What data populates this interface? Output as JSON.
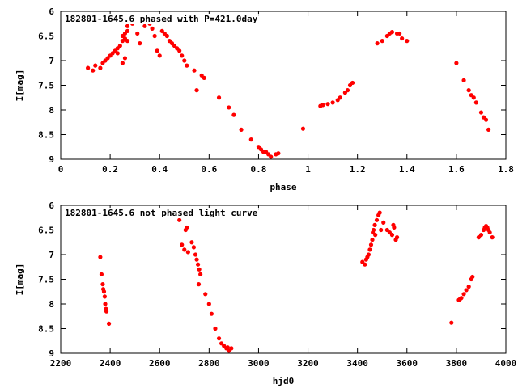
{
  "chart_data": [
    {
      "type": "scatter",
      "title": "182801-1645.6 phased with P=421.0day",
      "xlabel": "phase",
      "ylabel": "I[mag]",
      "xlim": [
        0,
        1.8
      ],
      "ylim": [
        9,
        6
      ],
      "y_inverted": true,
      "xticks": [
        "0",
        "0.2",
        "0.4",
        "0.6",
        "0.8",
        "1",
        "1.2",
        "1.4",
        "1.6",
        "1.8"
      ],
      "yticks": [
        "6",
        "6.5",
        "7",
        "7.5",
        "8",
        "8.5",
        "9"
      ],
      "grid": false,
      "marker_color": "#ff0000",
      "series": [
        {
          "points": [
            [
              0.11,
              7.15
            ],
            [
              0.13,
              7.2
            ],
            [
              0.14,
              7.1
            ],
            [
              0.16,
              7.15
            ],
            [
              0.17,
              7.05
            ],
            [
              0.18,
              7.0
            ],
            [
              0.19,
              6.95
            ],
            [
              0.2,
              6.9
            ],
            [
              0.21,
              6.85
            ],
            [
              0.22,
              6.8
            ],
            [
              0.23,
              6.75
            ],
            [
              0.24,
              6.7
            ],
            [
              0.23,
              6.85
            ],
            [
              0.25,
              6.6
            ],
            [
              0.25,
              6.5
            ],
            [
              0.26,
              6.45
            ],
            [
              0.26,
              6.55
            ],
            [
              0.27,
              6.4
            ],
            [
              0.27,
              6.6
            ],
            [
              0.27,
              6.3
            ],
            [
              0.28,
              6.2
            ],
            [
              0.29,
              6.25
            ],
            [
              0.3,
              6.2
            ],
            [
              0.31,
              6.15
            ],
            [
              0.31,
              6.45
            ],
            [
              0.32,
              6.65
            ],
            [
              0.25,
              7.05
            ],
            [
              0.26,
              6.95
            ],
            [
              0.34,
              6.3
            ],
            [
              0.35,
              6.2
            ],
            [
              0.36,
              6.25
            ],
            [
              0.37,
              6.35
            ],
            [
              0.38,
              6.5
            ],
            [
              0.39,
              6.8
            ],
            [
              0.4,
              6.9
            ],
            [
              0.41,
              6.4
            ],
            [
              0.42,
              6.45
            ],
            [
              0.43,
              6.5
            ],
            [
              0.44,
              6.6
            ],
            [
              0.45,
              6.65
            ],
            [
              0.46,
              6.7
            ],
            [
              0.47,
              6.75
            ],
            [
              0.48,
              6.8
            ],
            [
              0.49,
              6.9
            ],
            [
              0.5,
              7.0
            ],
            [
              0.51,
              7.1
            ],
            [
              0.54,
              7.2
            ],
            [
              0.55,
              7.6
            ],
            [
              0.57,
              7.3
            ],
            [
              0.58,
              7.35
            ],
            [
              0.64,
              7.75
            ],
            [
              0.68,
              7.95
            ],
            [
              0.7,
              8.1
            ],
            [
              0.73,
              8.4
            ],
            [
              0.77,
              8.6
            ],
            [
              0.8,
              8.75
            ],
            [
              0.81,
              8.8
            ],
            [
              0.82,
              8.85
            ],
            [
              0.83,
              8.85
            ],
            [
              0.84,
              8.9
            ],
            [
              0.85,
              8.95
            ],
            [
              0.87,
              8.9
            ],
            [
              0.88,
              8.88
            ],
            [
              0.98,
              8.38
            ],
            [
              1.05,
              7.92
            ],
            [
              1.06,
              7.9
            ],
            [
              1.08,
              7.88
            ],
            [
              1.1,
              7.85
            ],
            [
              1.12,
              7.8
            ],
            [
              1.13,
              7.75
            ],
            [
              1.15,
              7.65
            ],
            [
              1.16,
              7.6
            ],
            [
              1.17,
              7.5
            ],
            [
              1.18,
              7.45
            ],
            [
              1.28,
              6.65
            ],
            [
              1.3,
              6.6
            ],
            [
              1.32,
              6.5
            ],
            [
              1.33,
              6.45
            ],
            [
              1.34,
              6.42
            ],
            [
              1.36,
              6.45
            ],
            [
              1.37,
              6.45
            ],
            [
              1.38,
              6.55
            ],
            [
              1.4,
              6.6
            ],
            [
              1.6,
              7.05
            ],
            [
              1.63,
              7.4
            ],
            [
              1.65,
              7.6
            ],
            [
              1.66,
              7.7
            ],
            [
              1.67,
              7.75
            ],
            [
              1.68,
              7.85
            ],
            [
              1.7,
              8.05
            ],
            [
              1.71,
              8.15
            ],
            [
              1.72,
              8.2
            ],
            [
              1.73,
              8.4
            ]
          ]
        }
      ]
    },
    {
      "type": "scatter",
      "title": "182801-1645.6 not phased light curve",
      "xlabel": "hjd0",
      "ylabel": "I[mag]",
      "xlim": [
        2200,
        4000
      ],
      "ylim": [
        9,
        6
      ],
      "y_inverted": true,
      "xticks": [
        "2200",
        "2400",
        "2600",
        "2800",
        "3000",
        "3200",
        "3400",
        "3600",
        "3800",
        "4000"
      ],
      "yticks": [
        "6",
        "6.5",
        "7",
        "7.5",
        "8",
        "8.5",
        "9"
      ],
      "grid": false,
      "marker_color": "#ff0000",
      "series": [
        {
          "points": [
            [
              2360,
              7.05
            ],
            [
              2365,
              7.4
            ],
            [
              2370,
              7.6
            ],
            [
              2372,
              7.7
            ],
            [
              2375,
              7.75
            ],
            [
              2378,
              7.85
            ],
            [
              2380,
              8.0
            ],
            [
              2383,
              8.1
            ],
            [
              2385,
              8.15
            ],
            [
              2395,
              8.4
            ],
            [
              2680,
              6.3
            ],
            [
              2690,
              6.8
            ],
            [
              2700,
              6.9
            ],
            [
              2705,
              6.5
            ],
            [
              2710,
              6.45
            ],
            [
              2715,
              6.95
            ],
            [
              2730,
              6.75
            ],
            [
              2738,
              6.85
            ],
            [
              2745,
              7.0
            ],
            [
              2750,
              7.1
            ],
            [
              2755,
              7.2
            ],
            [
              2760,
              7.3
            ],
            [
              2765,
              7.4
            ],
            [
              2758,
              7.6
            ],
            [
              2785,
              7.8
            ],
            [
              2800,
              8.0
            ],
            [
              2810,
              8.2
            ],
            [
              2825,
              8.5
            ],
            [
              2840,
              8.7
            ],
            [
              2850,
              8.8
            ],
            [
              2860,
              8.85
            ],
            [
              2870,
              8.9
            ],
            [
              2880,
              8.95
            ],
            [
              2890,
              8.9
            ],
            [
              2875,
              8.88
            ],
            [
              3420,
              7.15
            ],
            [
              3430,
              7.2
            ],
            [
              3435,
              7.1
            ],
            [
              3440,
              7.05
            ],
            [
              3445,
              7.0
            ],
            [
              3450,
              6.9
            ],
            [
              3455,
              6.8
            ],
            [
              3460,
              6.7
            ],
            [
              3462,
              6.55
            ],
            [
              3465,
              6.5
            ],
            [
              3470,
              6.4
            ],
            [
              3472,
              6.6
            ],
            [
              3478,
              6.3
            ],
            [
              3485,
              6.2
            ],
            [
              3490,
              6.15
            ],
            [
              3495,
              6.5
            ],
            [
              3505,
              6.35
            ],
            [
              3520,
              6.5
            ],
            [
              3530,
              6.55
            ],
            [
              3540,
              6.6
            ],
            [
              3545,
              6.4
            ],
            [
              3548,
              6.45
            ],
            [
              3555,
              6.7
            ],
            [
              3560,
              6.65
            ],
            [
              3780,
              8.38
            ],
            [
              3810,
              7.92
            ],
            [
              3815,
              7.9
            ],
            [
              3820,
              7.88
            ],
            [
              3830,
              7.8
            ],
            [
              3840,
              7.72
            ],
            [
              3850,
              7.65
            ],
            [
              3860,
              7.5
            ],
            [
              3865,
              7.45
            ],
            [
              3890,
              6.65
            ],
            [
              3900,
              6.6
            ],
            [
              3910,
              6.5
            ],
            [
              3915,
              6.45
            ],
            [
              3920,
              6.42
            ],
            [
              3925,
              6.45
            ],
            [
              3930,
              6.5
            ],
            [
              3935,
              6.55
            ],
            [
              3945,
              6.65
            ]
          ]
        }
      ]
    }
  ]
}
